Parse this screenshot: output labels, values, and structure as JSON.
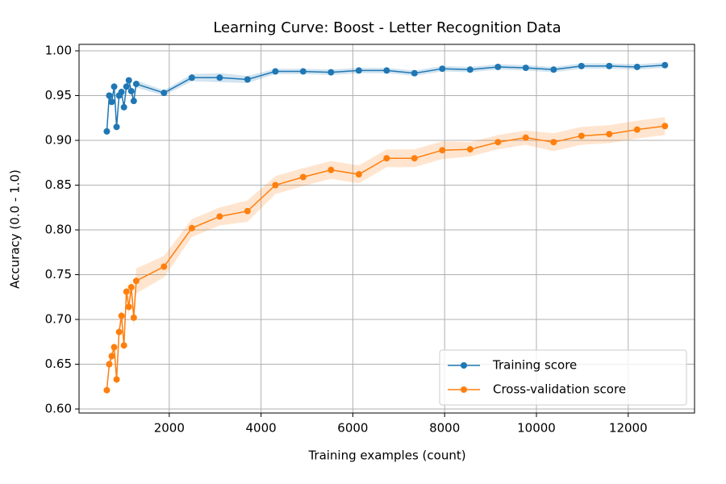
{
  "chart_data": {
    "type": "line",
    "title": "Learning Curve: Boost - Letter Recognition Data",
    "xlabel": "Training examples (count)",
    "ylabel": "Accuracy (0.0 - 1.0)",
    "x": [
      640,
      693,
      747,
      800,
      853,
      907,
      960,
      1013,
      1067,
      1120,
      1173,
      1227,
      1280,
      1886,
      2493,
      3099,
      3705,
      4312,
      4918,
      5524,
      6131,
      6737,
      7343,
      7949,
      8556,
      9162,
      9768,
      10375,
      10981,
      11587,
      12194,
      12800
    ],
    "series": [
      {
        "name": "Training score",
        "color": "#1f77b4",
        "values": [
          0.91,
          0.95,
          0.943,
          0.96,
          0.915,
          0.95,
          0.954,
          0.937,
          0.96,
          0.967,
          0.955,
          0.944,
          0.963,
          0.953,
          0.97,
          0.97,
          0.968,
          0.977,
          0.977,
          0.976,
          0.978,
          0.978,
          0.975,
          0.98,
          0.979,
          0.982,
          0.981,
          0.979,
          0.983,
          0.983,
          0.982,
          0.984
        ],
        "std": [
          0.004,
          0.004,
          0.004,
          0.004,
          0.004,
          0.004,
          0.004,
          0.004,
          0.004,
          0.004,
          0.004,
          0.004,
          0.004,
          0.003,
          0.004,
          0.005,
          0.004,
          0.003,
          0.003,
          0.003,
          0.003,
          0.003,
          0.003,
          0.003,
          0.003,
          0.003,
          0.003,
          0.003,
          0.003,
          0.003,
          0.003,
          0.003
        ]
      },
      {
        "name": "Cross-validation score",
        "color": "#ff7f0e",
        "values": [
          0.621,
          0.65,
          0.659,
          0.669,
          0.633,
          0.686,
          0.704,
          0.671,
          0.731,
          0.714,
          0.736,
          0.702,
          0.743,
          0.759,
          0.802,
          0.815,
          0.821,
          0.85,
          0.859,
          0.867,
          0.862,
          0.88,
          0.88,
          0.889,
          0.89,
          0.898,
          0.903,
          0.898,
          0.905,
          0.907,
          0.912,
          0.916
        ],
        "std": [
          0.005,
          0.006,
          0.006,
          0.006,
          0.006,
          0.008,
          0.008,
          0.008,
          0.01,
          0.01,
          0.01,
          0.012,
          0.014,
          0.012,
          0.01,
          0.01,
          0.012,
          0.01,
          0.01,
          0.01,
          0.01,
          0.01,
          0.01,
          0.01,
          0.008,
          0.008,
          0.008,
          0.01,
          0.01,
          0.01,
          0.01,
          0.01
        ]
      }
    ],
    "xlim": [
      35,
      13445
    ],
    "ylim": [
      0.5955,
      1.0072
    ],
    "xticks": [
      2000,
      4000,
      6000,
      8000,
      10000,
      12000
    ],
    "yticks": [
      {
        "value": 0.6,
        "label": "0.60"
      },
      0.65,
      {
        "value": 0.7,
        "label": "0.70"
      },
      0.75,
      {
        "value": 0.8,
        "label": "0.80"
      },
      0.85,
      {
        "value": 0.9,
        "label": "0.90"
      },
      0.95,
      {
        "value": 1.0,
        "label": "1.00"
      }
    ],
    "grid": true,
    "legend": "lower right"
  }
}
